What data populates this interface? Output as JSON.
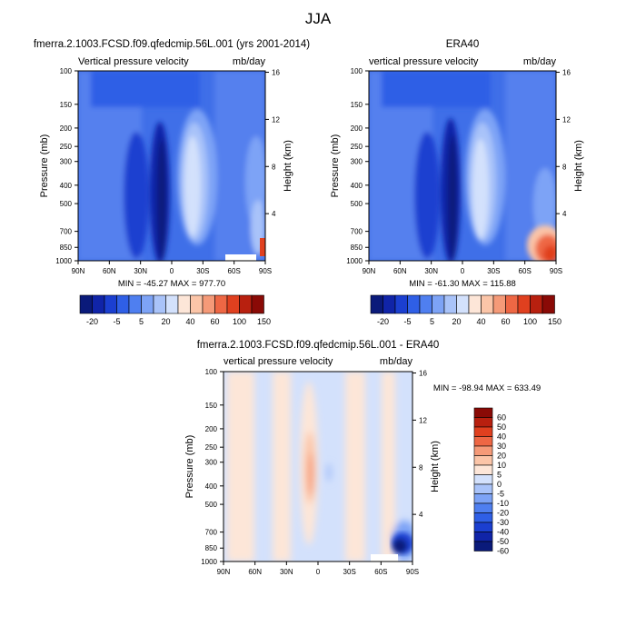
{
  "figure_title": "JJA",
  "chart_data": [
    {
      "type": "heatmap",
      "title": "fmerra.2.1003.FCSD.f09.qfedcmip.56L.001 (yrs 2001-2014)",
      "left_label": "Vertical pressure velocity",
      "right_label": "mb/day",
      "xlabel": "",
      "ylabel": "Pressure (mb)",
      "y2label": "Height (km)",
      "x_ticks": [
        "90N",
        "60N",
        "30N",
        "0",
        "30S",
        "60S",
        "90S"
      ],
      "y_ticks": [
        100,
        150,
        200,
        250,
        300,
        400,
        500,
        700,
        850,
        1000
      ],
      "y_scale": "log",
      "ylim": [
        1000,
        100
      ],
      "y2_ticks": [
        4,
        8,
        12,
        16
      ],
      "stats": "MIN = -45.27  MAX = 977.70",
      "colorbar_labels": [
        "-20",
        "-5",
        "5",
        "20",
        "40",
        "60",
        "100",
        "150"
      ]
    },
    {
      "type": "heatmap",
      "title": "ERA40",
      "left_label": "vertical pressure velocity",
      "right_label": "mb/day",
      "xlabel": "",
      "ylabel": "Pressure (mb)",
      "y2label": "Height (km)",
      "x_ticks": [
        "90N",
        "60N",
        "30N",
        "0",
        "30S",
        "60S",
        "90S"
      ],
      "y_ticks": [
        100,
        150,
        200,
        250,
        300,
        400,
        500,
        700,
        850,
        1000
      ],
      "y_scale": "log",
      "ylim": [
        1000,
        100
      ],
      "y2_ticks": [
        4,
        8,
        12,
        16
      ],
      "stats": "MIN = -61.30  MAX = 115.88",
      "colorbar_labels": [
        "-20",
        "-5",
        "5",
        "20",
        "40",
        "60",
        "100",
        "150"
      ]
    },
    {
      "type": "heatmap",
      "title": "fmerra.2.1003.FCSD.f09.qfedcmip.56L.001 - ERA40",
      "left_label": "vertical pressure velocity",
      "right_label": "mb/day",
      "xlabel": "",
      "ylabel": "Pressure (mb)",
      "y2label": "Height (km)",
      "x_ticks": [
        "90N",
        "60N",
        "30N",
        "0",
        "30S",
        "60S",
        "90S"
      ],
      "y_ticks": [
        100,
        150,
        200,
        250,
        300,
        400,
        500,
        700,
        850,
        1000
      ],
      "y_scale": "log",
      "ylim": [
        1000,
        100
      ],
      "y2_ticks": [
        4,
        8,
        12,
        16
      ],
      "stats": "MIN = -98.94  MAX = 633.49",
      "colorbar_labels": [
        "60",
        "50",
        "40",
        "30",
        "20",
        "10",
        "5",
        "0",
        "-5",
        "-10",
        "-20",
        "-30",
        "-40",
        "-50",
        "-60"
      ]
    }
  ],
  "colors": {
    "scale_top": [
      "#0a1a7a",
      "#1024a8",
      "#1b3fd0",
      "#2f5fe6",
      "#4f7ff0",
      "#7da3f6",
      "#a9c3f9",
      "#d3e1fc",
      "#fde6d8",
      "#fbc5a8",
      "#f59a78",
      "#ee6744",
      "#e0401f",
      "#b8200f",
      "#8a0a06"
    ],
    "scale_diff": [
      "#8a0a06",
      "#b8200f",
      "#e0401f",
      "#ee6744",
      "#f59a78",
      "#fbc5a8",
      "#fde6d8",
      "#d3e1fc",
      "#a9c3f9",
      "#7da3f6",
      "#4f7ff0",
      "#2f5fe6",
      "#1b3fd0",
      "#1024a8",
      "#0a1a7a"
    ]
  }
}
